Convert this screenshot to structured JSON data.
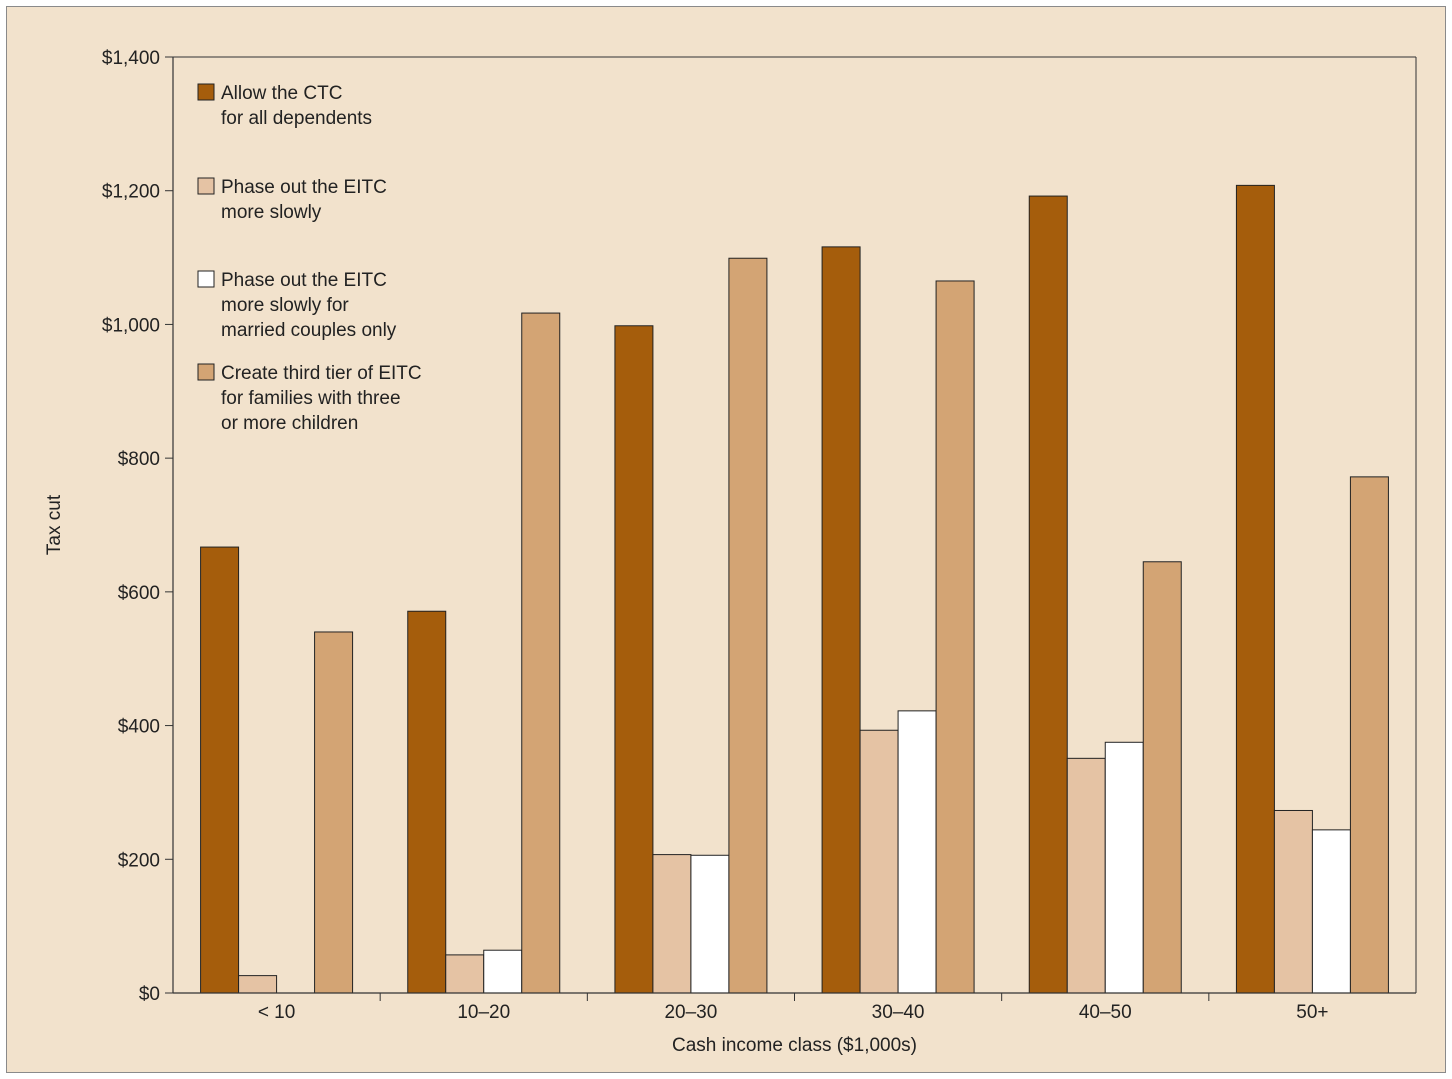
{
  "chart_data": {
    "type": "bar",
    "xlabel": "Cash income class ($1,000s)",
    "ylabel": "Tax cut",
    "ylim": [
      0,
      1400
    ],
    "yticks": [
      0,
      200,
      400,
      600,
      800,
      1000,
      1200,
      1400
    ],
    "ytick_labels": [
      "$0",
      "$200",
      "$400",
      "$600",
      "$800",
      "$1,000",
      "$1,200",
      "$1,400"
    ],
    "categories": [
      "< 10",
      "10–20",
      "20–30",
      "30–40",
      "40–50",
      "50+"
    ],
    "grid": false,
    "legend_position": "top-left",
    "series": [
      {
        "name": "Allow the CTC for all dependents",
        "legend_lines": [
          "Allow the CTC",
          "for all dependents"
        ],
        "color": "#a55d0c",
        "values": [
          667,
          571,
          998,
          1116,
          1192,
          1208
        ]
      },
      {
        "name": "Phase out the EITC more slowly",
        "legend_lines": [
          "Phase out the EITC",
          "more slowly"
        ],
        "color": "#e5c3a4",
        "values": [
          26,
          57,
          207,
          393,
          351,
          273
        ]
      },
      {
        "name": "Phase out the EITC more slowly for married couples only",
        "legend_lines": [
          "Phase out the EITC",
          "more slowly for",
          "married couples only"
        ],
        "color": "#ffffff",
        "values": [
          0,
          64,
          206,
          422,
          375,
          244
        ]
      },
      {
        "name": "Create third tier of EITC for families with three or more children",
        "legend_lines": [
          "Create third tier of EITC",
          "for families with three",
          "or more children"
        ],
        "color": "#d3a474",
        "values": [
          540,
          1017,
          1099,
          1065,
          645,
          772
        ]
      }
    ]
  }
}
